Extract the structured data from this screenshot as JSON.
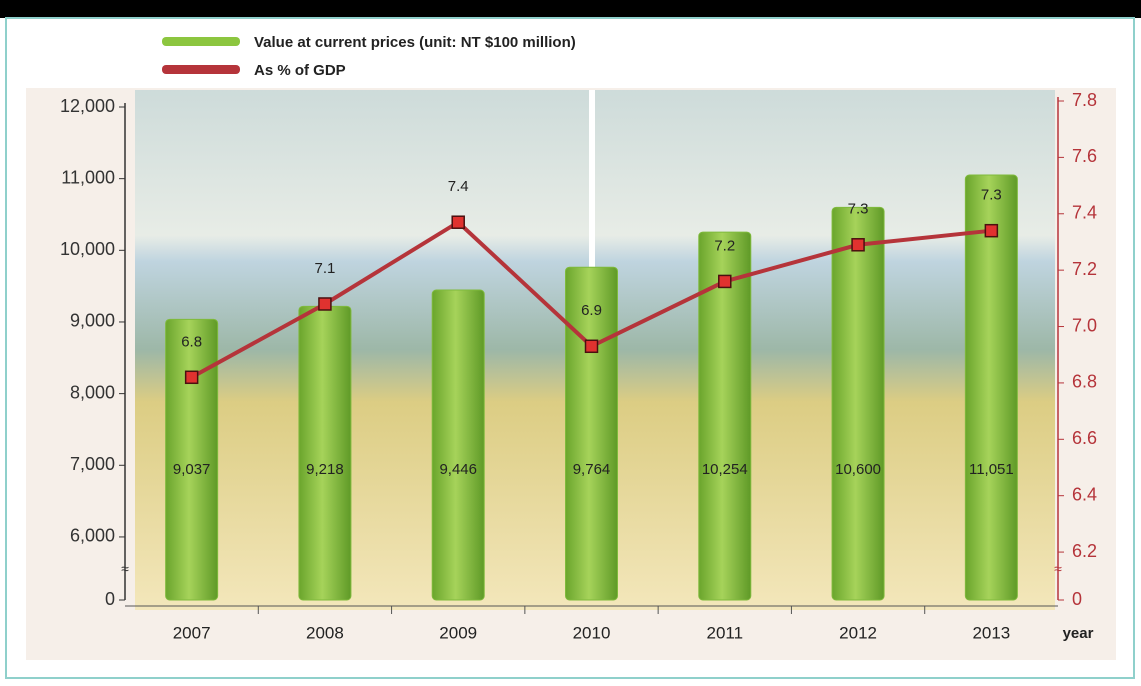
{
  "chart_data": {
    "type": "bar_line",
    "legend": [
      "Value at current prices (unit: NT $100 million)",
      "As % of GDP"
    ],
    "categories": [
      "2007",
      "2008",
      "2009",
      "2010",
      "2011",
      "2012",
      "2013"
    ],
    "x_label": "year",
    "series": [
      {
        "name": "Value at current prices (unit: NT $100 million)",
        "type": "bar",
        "color": "#7fba3c",
        "values": [
          9037,
          9218,
          9446,
          9764,
          10254,
          10600,
          11051
        ],
        "value_labels": [
          "9,037",
          "9,218",
          "9,446",
          "9,764",
          "10,254",
          "10,600",
          "11,051"
        ]
      },
      {
        "name": "As % of GDP",
        "type": "line",
        "axis": "y2",
        "color": "#b5343a",
        "values": [
          6.82,
          7.08,
          7.37,
          6.93,
          7.16,
          7.29,
          7.34
        ],
        "value_labels": [
          "6.8",
          "7.1",
          "7.4",
          "6.9",
          "7.2",
          "7.3",
          "7.3"
        ]
      }
    ],
    "ylim": [
      5120,
      12000
    ],
    "yticks": [
      0,
      6000,
      7000,
      8000,
      9000,
      10000,
      11000,
      12000
    ],
    "yticks_labels": [
      "0",
      "6,000",
      "7,000",
      "8,000",
      "9,000",
      "10,000",
      "11,000",
      "12,000"
    ],
    "y2lim": [
      6.03,
      7.8
    ],
    "y2ticks": [
      0,
      6.2,
      6.4,
      6.6,
      6.8,
      {
        "value": 7,
        "label": "7.0"
      },
      7.2,
      7.4,
      7.6,
      7.8
    ],
    "axis_break": true
  }
}
